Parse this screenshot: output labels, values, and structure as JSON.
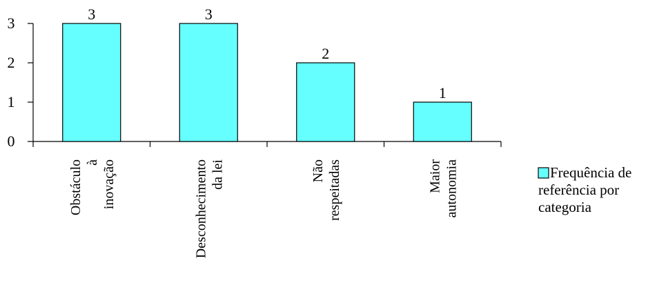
{
  "chart_data": {
    "type": "bar",
    "categories": [
      [
        "Obstáculo",
        "à",
        "inovação"
      ],
      [
        "Desconhecimento",
        "da lei"
      ],
      [
        "Não",
        "respeitadas"
      ],
      [
        "Maior",
        "autonomia"
      ]
    ],
    "series": [
      {
        "name": "Frequência de referência por categoria",
        "values": [
          3,
          3,
          2,
          1
        ],
        "color": "#66FFFF"
      }
    ],
    "data_labels": [
      "3",
      "3",
      "2",
      "1"
    ],
    "y_ticks": [
      "0",
      "1",
      "2",
      "3"
    ],
    "ylim": [
      0,
      3
    ],
    "grid": false,
    "legend": {
      "position": "right",
      "lines": [
        "Frequência de",
        "referência por",
        "categoria"
      ]
    }
  }
}
